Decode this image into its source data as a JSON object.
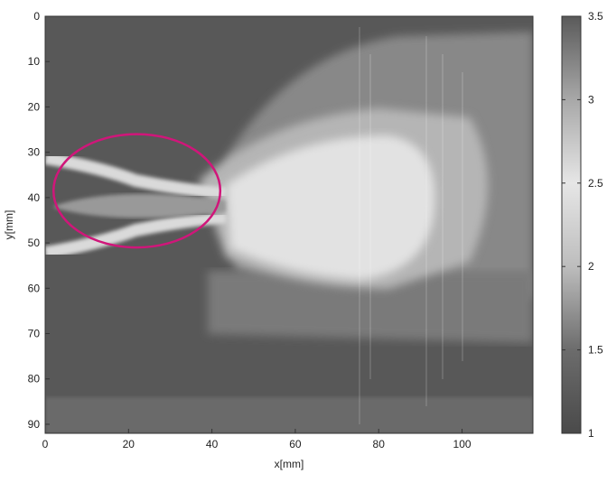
{
  "chart_data": {
    "type": "heatmap",
    "title": "",
    "xlabel": "x[mm]",
    "ylabel": "y[mm]",
    "xlim": [
      0,
      117
    ],
    "ylim": [
      0,
      92
    ],
    "y_axis_inverted": true,
    "x_ticks": [
      0,
      20,
      40,
      60,
      80,
      100
    ],
    "x_tick_labels": [
      "0",
      "20",
      "40",
      "60",
      "80",
      "100"
    ],
    "y_ticks": [
      0,
      10,
      20,
      30,
      40,
      50,
      60,
      70,
      80,
      90
    ],
    "y_tick_labels": [
      "0",
      "10",
      "20",
      "30",
      "40",
      "50",
      "60",
      "70",
      "80",
      "90"
    ],
    "colorbar": {
      "colormap": "gray",
      "range": [
        1,
        3.5
      ],
      "ticks": [
        1,
        1.5,
        2,
        2.5,
        3,
        3.5
      ],
      "tick_labels": [
        "1",
        "1.5",
        "2",
        "2.5",
        "3",
        "3.5"
      ],
      "placement": "right"
    },
    "grid": false,
    "field_description_regions": [
      {
        "region": "plume core",
        "x_range": [
          45,
          95
        ],
        "y_range": [
          28,
          55
        ],
        "value": 2.3
      },
      {
        "region": "jet edges near inlet",
        "x_range": [
          0,
          40
        ],
        "y_range": [
          27,
          52
        ],
        "value": 2.3
      },
      {
        "region": "upper background",
        "x_range": [
          0,
          117
        ],
        "y_range": [
          0,
          25
        ],
        "value": 1.3
      },
      {
        "region": "lower background",
        "x_range": [
          0,
          117
        ],
        "y_range": [
          60,
          92
        ],
        "value": 1.35
      }
    ],
    "annotations": [
      {
        "type": "ellipse",
        "color": "#D0167A",
        "center": [
          22,
          38.5
        ],
        "radii": [
          20,
          12.5
        ]
      }
    ]
  }
}
